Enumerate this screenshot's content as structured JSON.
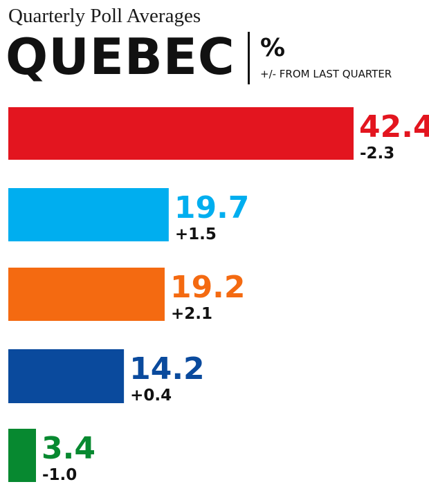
{
  "header": {
    "subtitle": "Quarterly Poll Averages",
    "region": "QUEBEC",
    "unit": "%",
    "note": "+/- FROM LAST QUARTER"
  },
  "chart_data": {
    "type": "bar",
    "orientation": "horizontal",
    "title": "Quarterly Poll Averages",
    "subtitle": "QUEBEC",
    "unit": "%",
    "change_label": "+/- FROM LAST QUARTER",
    "values": [
      42.4,
      19.7,
      19.2,
      14.2,
      3.4
    ],
    "value_labels": [
      "42.4",
      "19.7",
      "19.2",
      "14.2",
      "3.4"
    ],
    "changes": [
      "-2.3",
      "+1.5",
      "+2.1",
      "+0.4",
      "-1.0"
    ],
    "colors": [
      "#e3151f",
      "#00aeef",
      "#f46a11",
      "#0a4a9d",
      "#078930"
    ],
    "xlim": [
      0,
      42.4
    ],
    "grid": false,
    "legend": "none"
  }
}
